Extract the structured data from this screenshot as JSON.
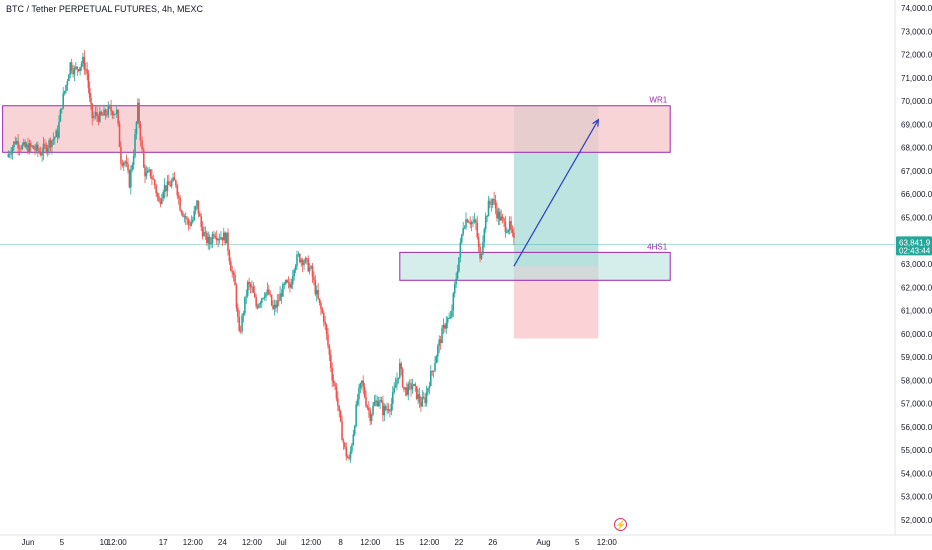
{
  "header": {
    "title": "BTC / Tether PERPETUAL FUTURES, 4h, MEXC"
  },
  "colors": {
    "up": "#26a69a",
    "down": "#ef5350",
    "zone_fill": "#f7c5c9",
    "zone_border": "#9c27b0",
    "target_fill": "#b2dfdb",
    "stop_fill": "#fbcdd0",
    "arrow": "#2a3fbf",
    "price_line": "#26a69a",
    "price_tag": "#26a69a"
  },
  "chart_data": {
    "type": "candlestick",
    "title": "BTC / Tether PERPETUAL FUTURES, 4h, MEXC",
    "ylim": [
      52000,
      74000
    ],
    "y_ticks": [
      "52,000.0",
      "53,000.0",
      "54,000.0",
      "55,000.0",
      "56,000.0",
      "57,000.0",
      "58,000.0",
      "59,000.0",
      "60,000.0",
      "61,000.0",
      "62,000.0",
      "63,000.0",
      "64,000.0",
      "65,000.0",
      "66,000.0",
      "67,000.0",
      "68,000.0",
      "69,000.0",
      "70,000.0",
      "71,000.0",
      "72,000.0",
      "73,000.0",
      "74,000.0"
    ],
    "x_ticks": [
      {
        "label": "Jun",
        "day": 0
      },
      {
        "label": "5",
        "day": 4
      },
      {
        "label": "10",
        "day": 9
      },
      {
        "label": "12:00",
        "day": 10.5
      },
      {
        "label": "17",
        "day": 16
      },
      {
        "label": "12:00",
        "day": 19.5
      },
      {
        "label": "24",
        "day": 23
      },
      {
        "label": "12:00",
        "day": 26.5
      },
      {
        "label": "Jul",
        "day": 30
      },
      {
        "label": "12:00",
        "day": 33.5
      },
      {
        "label": "8",
        "day": 37
      },
      {
        "label": "12:00",
        "day": 40.5
      },
      {
        "label": "15",
        "day": 44
      },
      {
        "label": "12:00",
        "day": 47.5
      },
      {
        "label": "22",
        "day": 51
      },
      {
        "label": "26",
        "day": 55
      },
      {
        "label": "Aug",
        "day": 61
      },
      {
        "label": "5",
        "day": 65
      },
      {
        "label": "12:00",
        "day": 68.5
      }
    ],
    "price_path": [
      [
        -2.5,
        67600
      ],
      [
        -1.5,
        68300
      ],
      [
        -0.5,
        68000
      ],
      [
        0.5,
        68000
      ],
      [
        1.5,
        67800
      ],
      [
        2.5,
        68200
      ],
      [
        3.5,
        68600
      ],
      [
        4,
        69900
      ],
      [
        4.5,
        70700
      ],
      [
        5,
        71600
      ],
      [
        5.5,
        71300
      ],
      [
        6,
        71500
      ],
      [
        6.5,
        71700
      ],
      [
        7,
        71200
      ],
      [
        7.3,
        70000
      ],
      [
        7.6,
        69300
      ],
      [
        8,
        69400
      ],
      [
        8.5,
        69300
      ],
      [
        9,
        69400
      ],
      [
        9.5,
        69600
      ],
      [
        10,
        69600
      ],
      [
        10.5,
        69500
      ],
      [
        11,
        67500
      ],
      [
        11.5,
        67400
      ],
      [
        12,
        66500
      ],
      [
        12.5,
        67800
      ],
      [
        13,
        69700
      ],
      [
        13.3,
        68500
      ],
      [
        13.7,
        67100
      ],
      [
        14,
        66800
      ],
      [
        14.5,
        66900
      ],
      [
        15,
        66400
      ],
      [
        15.5,
        65600
      ],
      [
        16,
        66300
      ],
      [
        16.5,
        66300
      ],
      [
        17,
        66500
      ],
      [
        17.5,
        66500
      ],
      [
        18,
        65500
      ],
      [
        18.5,
        65100
      ],
      [
        19,
        64700
      ],
      [
        19.5,
        64900
      ],
      [
        20,
        65600
      ],
      [
        20.5,
        64600
      ],
      [
        21,
        64100
      ],
      [
        21.5,
        63900
      ],
      [
        22,
        64400
      ],
      [
        22.5,
        64200
      ],
      [
        23,
        64200
      ],
      [
        23.5,
        64100
      ],
      [
        24,
        62900
      ],
      [
        24.5,
        62000
      ],
      [
        25,
        59900
      ],
      [
        25.5,
        61000
      ],
      [
        26,
        62100
      ],
      [
        26.5,
        61900
      ],
      [
        27,
        61200
      ],
      [
        27.5,
        61500
      ],
      [
        28,
        61800
      ],
      [
        28.5,
        61700
      ],
      [
        29,
        61000
      ],
      [
        29.5,
        61300
      ],
      [
        30,
        61800
      ],
      [
        30.5,
        62100
      ],
      [
        31,
        62000
      ],
      [
        31.5,
        63000
      ],
      [
        32,
        63300
      ],
      [
        32.5,
        63200
      ],
      [
        33,
        63000
      ],
      [
        33.5,
        62700
      ],
      [
        34,
        61900
      ],
      [
        34.5,
        61200
      ],
      [
        35,
        60700
      ],
      [
        35.5,
        59500
      ],
      [
        36,
        58200
      ],
      [
        36.5,
        57400
      ],
      [
        37,
        56000
      ],
      [
        37.5,
        55000
      ],
      [
        38,
        54500
      ],
      [
        38.5,
        55800
      ],
      [
        39,
        57200
      ],
      [
        39.5,
        57900
      ],
      [
        40,
        57100
      ],
      [
        40.5,
        56500
      ],
      [
        41,
        57000
      ],
      [
        41.5,
        57200
      ],
      [
        42,
        56700
      ],
      [
        42.5,
        56800
      ],
      [
        43,
        57000
      ],
      [
        43.5,
        57800
      ],
      [
        44,
        58600
      ],
      [
        44.5,
        57600
      ],
      [
        45,
        57600
      ],
      [
        45.5,
        57800
      ],
      [
        46,
        57400
      ],
      [
        46.5,
        57000
      ],
      [
        47,
        57200
      ],
      [
        47.5,
        58000
      ],
      [
        48,
        58600
      ],
      [
        48.5,
        59400
      ],
      [
        49,
        60000
      ],
      [
        49.5,
        60600
      ],
      [
        50,
        60600
      ],
      [
        50.5,
        62000
      ],
      [
        51,
        63300
      ],
      [
        51.5,
        64700
      ],
      [
        52,
        65000
      ],
      [
        52.5,
        64800
      ],
      [
        53,
        64700
      ],
      [
        53.5,
        63100
      ],
      [
        54,
        64700
      ],
      [
        54.5,
        65500
      ],
      [
        55,
        65800
      ],
      [
        55.5,
        65200
      ],
      [
        56,
        64900
      ],
      [
        56.5,
        64600
      ],
      [
        57,
        64600
      ],
      [
        57.5,
        63900
      ]
    ],
    "last_price": {
      "value": 63841.9,
      "label": "63,841.9",
      "countdown": "02:43:44"
    },
    "zones": [
      {
        "name": "WR1",
        "label": "WR1",
        "y_top": 69800,
        "y_bottom": 67800,
        "x_start": -3,
        "x_end": 76
      },
      {
        "name": "4HS1",
        "label": "4HS1",
        "y_top": 63500,
        "y_bottom": 62300,
        "x_start": 44,
        "x_end": 76
      }
    ],
    "position": {
      "entry": 62900,
      "target": 69800,
      "stop": 59800,
      "x_start": 57.5,
      "x_end": 67.5
    },
    "arrow": {
      "from": [
        57.5,
        62900
      ],
      "to": [
        67.5,
        69200
      ]
    }
  },
  "footer": {
    "bolt_icon": "lightning-icon"
  }
}
